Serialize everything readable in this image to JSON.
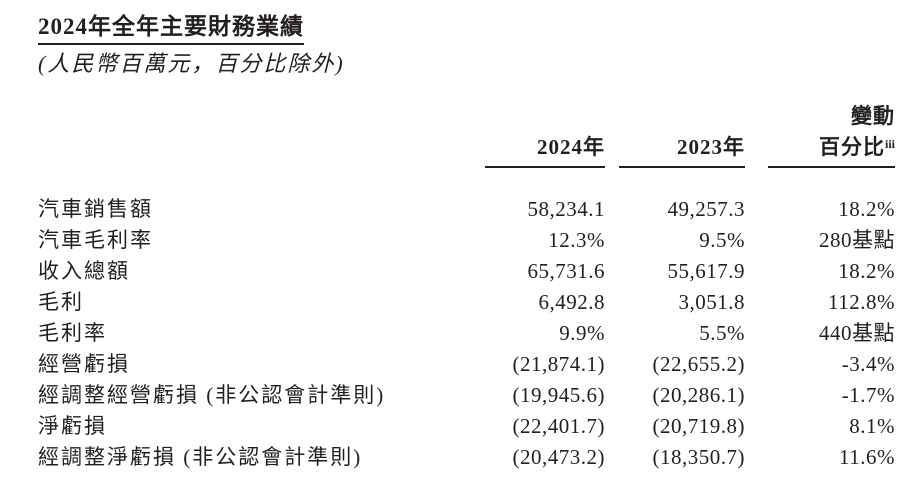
{
  "doc": {
    "title": "2024年全年主要財務業績",
    "subtitle": "(人民幣百萬元，百分比除外)"
  },
  "table": {
    "header": {
      "change_label": "變動",
      "col_2024": "2024年",
      "col_2023": "2023年",
      "change_pct_label": "百分比",
      "footnote_marker": "iii"
    },
    "rows": [
      {
        "label": "汽車銷售額",
        "y2024": "58,234.1",
        "y2023": "49,257.3",
        "change": "18.2%"
      },
      {
        "label": "汽車毛利率",
        "y2024": "12.3%",
        "y2023": "9.5%",
        "change": "280基點"
      },
      {
        "label": "收入總額",
        "y2024": "65,731.6",
        "y2023": "55,617.9",
        "change": "18.2%"
      },
      {
        "label": "毛利",
        "y2024": "6,492.8",
        "y2023": "3,051.8",
        "change": "112.8%"
      },
      {
        "label": "毛利率",
        "y2024": "9.9%",
        "y2023": "5.5%",
        "change": "440基點"
      },
      {
        "label": "經營虧損",
        "y2024": "(21,874.1)",
        "y2023": "(22,655.2)",
        "change": "-3.4%"
      },
      {
        "label": "經調整經營虧損 (非公認會計準則)",
        "y2024": "(19,945.6)",
        "y2023": "(20,286.1)",
        "change": "-1.7%"
      },
      {
        "label": "淨虧損",
        "y2024": "(22,401.7)",
        "y2023": "(20,719.8)",
        "change": "8.1%"
      },
      {
        "label": "經調整淨虧損 (非公認會計準則)",
        "y2024": "(20,473.2)",
        "y2023": "(18,350.7)",
        "change": "11.6%"
      }
    ]
  },
  "colors": {
    "text": "#231f20",
    "rule": "#231f20",
    "background": "#ffffff"
  }
}
